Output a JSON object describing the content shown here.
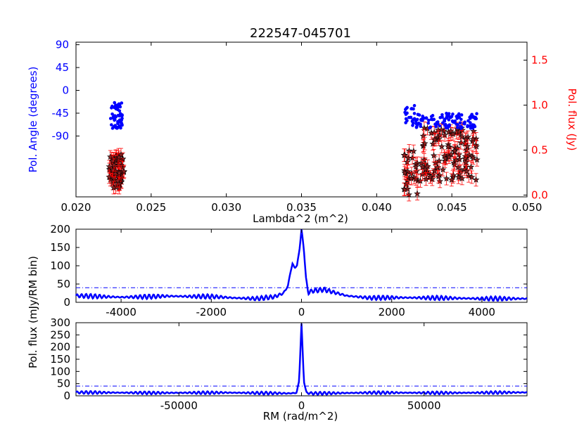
{
  "chart_data": [
    {
      "type": "scatter",
      "title": "222547-045701",
      "xlabel": "Lambda^2 (m^2)",
      "ylabel_left": "Pol. Angle (degrees)",
      "ylabel_right": "Pol. flux (Jy)",
      "xlim": [
        0.02,
        0.05
      ],
      "ylim_left": [
        -210,
        95
      ],
      "ylim_right": [
        -0.02,
        1.7
      ],
      "xticks": [
        "0.020",
        "0.025",
        "0.030",
        "0.035",
        "0.040",
        "0.045",
        "0.050"
      ],
      "yticks_left": [
        "90",
        "45",
        "0",
        "-45",
        "-90"
      ],
      "yticks_right": [
        "0.0",
        "0.5",
        "1.0",
        "1.5"
      ],
      "colors": {
        "angle": "#0000ff",
        "flux_fill": "#8b2020",
        "flux_err": "#ff0000",
        "left_axis": "#0000ff",
        "right_axis": "#ff0000"
      },
      "series": [
        {
          "name": "",
          "marker": "dot",
          "axis": "left",
          "clusters": [
            {
              "xmin": 0.0223,
              "xmax": 0.0231,
              "ymin": -75,
              "ymax": -23,
              "count": 55
            },
            {
              "xmin": 0.0418,
              "xmax": 0.0426,
              "ymin": -70,
              "ymax": -30,
              "count": 22
            },
            {
              "xmin": 0.0426,
              "xmax": 0.0467,
              "ymin": -75,
              "ymax": -45,
              "count": 110
            }
          ]
        },
        {
          "name": "",
          "marker": "star",
          "axis": "right",
          "err": 0.07,
          "clusters": [
            {
              "xmin": 0.0222,
              "xmax": 0.0232,
              "ymin": 0.08,
              "ymax": 0.45,
              "count": 70
            },
            {
              "xmin": 0.0417,
              "xmax": 0.043,
              "ymin": 0.0,
              "ymax": 0.5,
              "count": 30
            },
            {
              "xmin": 0.043,
              "xmax": 0.0467,
              "ymin": 0.15,
              "ymax": 0.75,
              "count": 110
            }
          ]
        }
      ]
    },
    {
      "type": "line",
      "ylabel": "Pol. flux (mJy/RM bin)",
      "xlim": [
        -5000,
        5000
      ],
      "ylim": [
        0,
        200
      ],
      "xticks": [
        "-4000",
        "-2000",
        "0",
        "2000",
        "4000"
      ],
      "yticks": [
        "0",
        "50",
        "100",
        "150",
        "200"
      ],
      "threshold": 40,
      "x": [
        -5000,
        -4500,
        -4000,
        -3500,
        -3000,
        -2500,
        -2000,
        -1500,
        -1000,
        -600,
        -400,
        -300,
        -250,
        -200,
        -150,
        -100,
        -50,
        0,
        50,
        100,
        150,
        200,
        300,
        500,
        700,
        1000,
        1500,
        2000,
        3000,
        4000,
        5000
      ],
      "y": [
        18,
        16,
        14,
        15,
        17,
        16,
        16,
        12,
        10,
        15,
        25,
        45,
        80,
        105,
        95,
        100,
        140,
        198,
        150,
        65,
        25,
        30,
        32,
        35,
        28,
        18,
        12,
        13,
        12,
        10,
        10
      ],
      "ripple": 6,
      "color": "#0000ff"
    },
    {
      "type": "line",
      "xlabel": "RM (rad/m^2)",
      "ylabel": "Pol. flux (mJy/RM bin)",
      "xlim": [
        -92000,
        92000
      ],
      "ylim": [
        0,
        300
      ],
      "xticks": [
        "-50000",
        "0",
        "50000"
      ],
      "yticks": [
        "0",
        "50",
        "100",
        "150",
        "200",
        "250",
        "300"
      ],
      "threshold": 40,
      "x": [
        -92000,
        -60000,
        -30000,
        -5000,
        -2000,
        -1000,
        0,
        1000,
        2000,
        5000,
        30000,
        60000,
        92000
      ],
      "y": [
        14,
        12,
        13,
        10,
        12,
        60,
        295,
        60,
        12,
        10,
        13,
        12,
        14
      ],
      "ripple": 6,
      "color": "#0000ff"
    }
  ]
}
